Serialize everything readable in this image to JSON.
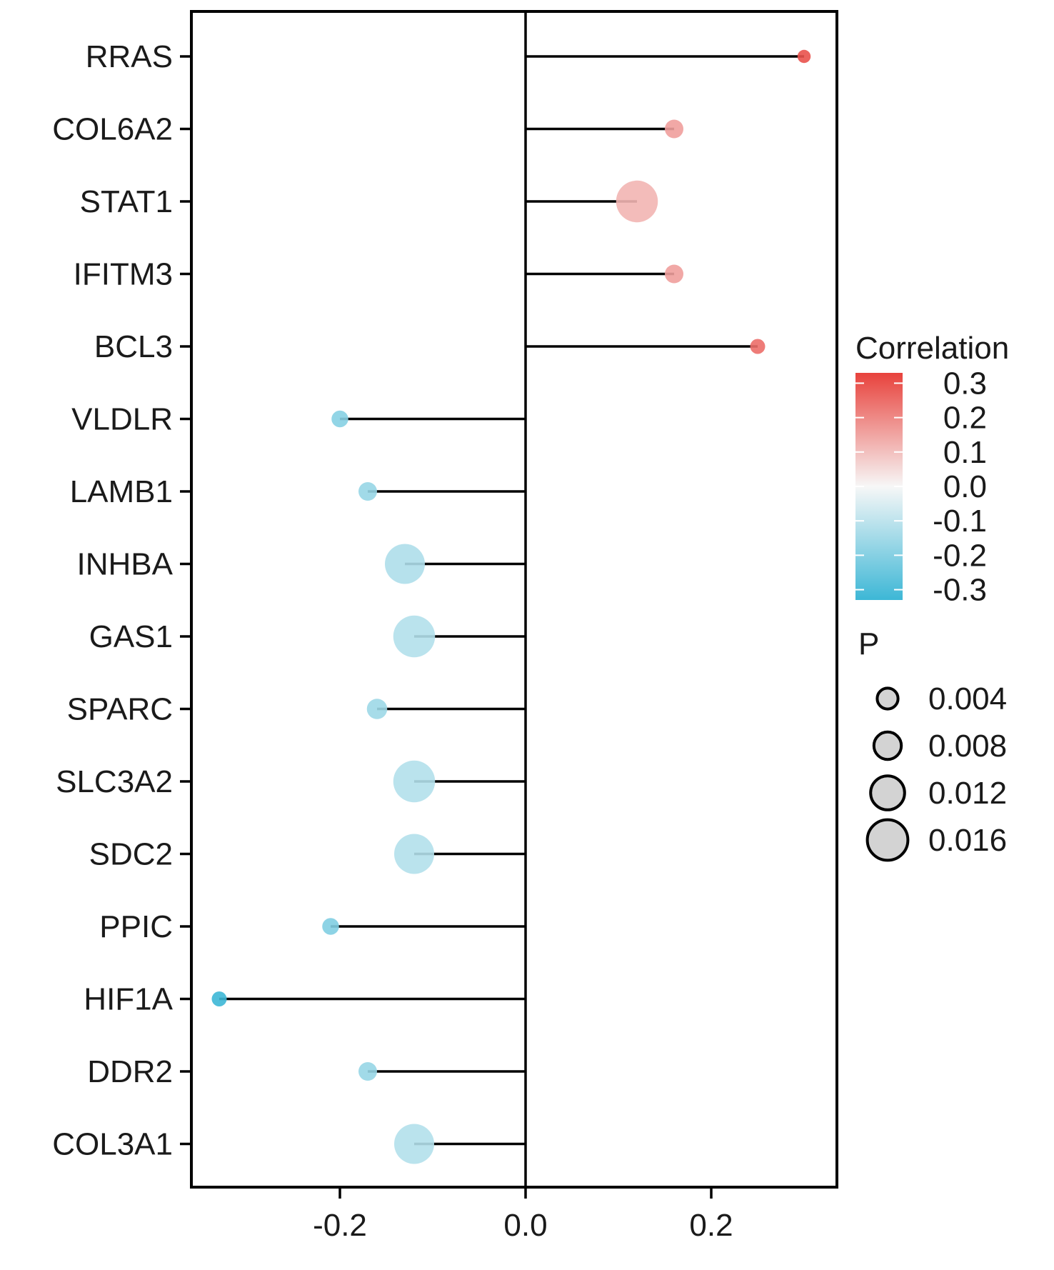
{
  "chart_data": {
    "type": "lollipop",
    "orientation": "horizontal",
    "categories": [
      "RRAS",
      "COL6A2",
      "STAT1",
      "IFITM3",
      "BCL3",
      "VLDLR",
      "LAMB1",
      "INHBA",
      "GAS1",
      "SPARC",
      "SLC3A2",
      "SDC2",
      "PPIC",
      "HIF1A",
      "DDR2",
      "COL3A1"
    ],
    "correlation": [
      0.3,
      0.16,
      0.12,
      0.16,
      0.25,
      -0.2,
      -0.17,
      -0.13,
      -0.12,
      -0.16,
      -0.12,
      -0.12,
      -0.21,
      -0.33,
      -0.17,
      -0.12
    ],
    "p_value": [
      0.001,
      0.004,
      0.017,
      0.004,
      0.002,
      0.003,
      0.004,
      0.016,
      0.017,
      0.005,
      0.017,
      0.016,
      0.003,
      0.002,
      0.004,
      0.016
    ],
    "xlim": [
      -0.36,
      0.34
    ],
    "x_ticks": [
      "-0.2",
      "0.0",
      "0.2"
    ],
    "x_tick_values": [
      -0.2,
      0.0,
      0.2
    ],
    "xlabel": "",
    "ylabel": "",
    "grid": false,
    "reference_line": 0.0,
    "legend": {
      "placement": "right",
      "color": {
        "title": "Correlation",
        "labels": [
          "0.3",
          "0.2",
          "0.1",
          "0.0",
          "-0.1",
          "-0.2",
          "-0.3"
        ],
        "values": [
          0.3,
          0.2,
          0.1,
          0.0,
          -0.1,
          -0.2,
          -0.3
        ],
        "high_color": "#e8423c",
        "mid_color": "#f7f7f7",
        "low_color": "#3db7d6"
      },
      "size": {
        "title": "P",
        "labels": [
          "0.004",
          "0.008",
          "0.012",
          "0.016"
        ],
        "values": [
          0.004,
          0.008,
          0.012,
          0.016
        ]
      }
    }
  }
}
